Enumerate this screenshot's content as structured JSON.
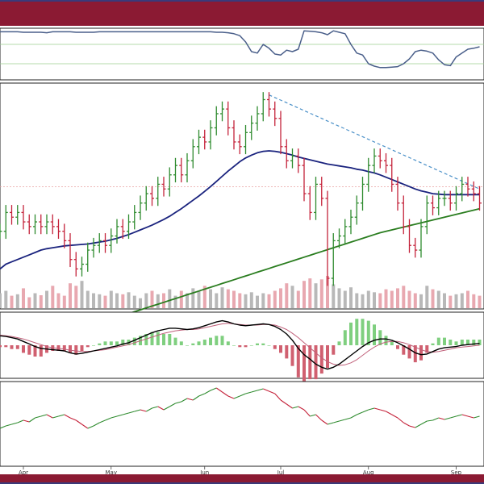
{
  "colors": {
    "banner": "#8b1a33",
    "up": "#2e8b2e",
    "down": "#c4223a",
    "ma_short": "#1a237e",
    "ma_long": "#2a7d1f",
    "trendline": "#4a90c8",
    "ref_line": "#e8a0a0",
    "rsi": "#4a5f8a",
    "macd": "#000000",
    "signal": "#c0607a",
    "hist_up": "#7fcf7f",
    "hist_down": "#d06070",
    "vol_up": "#b8b8b8",
    "vol_down": "#e8a8b0",
    "rel_line": "#2e8b2e"
  },
  "chart_data": [
    {
      "panel": "rsi",
      "type": "line",
      "ylim": [
        0,
        100
      ],
      "reference_levels": [
        30,
        70
      ],
      "values": [
        96,
        96,
        96,
        96,
        95,
        95,
        95,
        95,
        94,
        96,
        96,
        96,
        96,
        95,
        95,
        95,
        95,
        96,
        96,
        96,
        96,
        96,
        96,
        96,
        96,
        96,
        96,
        96,
        96,
        96,
        96,
        96,
        96,
        96,
        96,
        96,
        96,
        95,
        95,
        94,
        92,
        88,
        75,
        55,
        52,
        70,
        62,
        50,
        48,
        58,
        55,
        60,
        98,
        97,
        96,
        94,
        90,
        98,
        95,
        92,
        70,
        52,
        48,
        30,
        25,
        22,
        22,
        23,
        24,
        30,
        40,
        55,
        58,
        56,
        52,
        38,
        28,
        26,
        44,
        52,
        60,
        62,
        65
      ]
    },
    {
      "panel": "price",
      "type": "ohlc",
      "ylim": [
        38,
        85
      ],
      "x_ticks": [
        {
          "label": "Apr",
          "index": 4
        },
        {
          "label": "May",
          "index": 19
        },
        {
          "label": "Jun",
          "index": 35
        },
        {
          "label": "Jul",
          "index": 48
        },
        {
          "label": "Aug",
          "index": 63
        },
        {
          "label": "Sep",
          "index": 78
        }
      ],
      "closes": [
        54,
        58,
        57,
        58,
        56,
        55,
        56,
        55,
        56,
        55,
        54,
        52,
        48,
        46,
        47,
        50,
        51,
        52,
        51,
        53,
        55,
        54,
        56,
        58,
        60,
        62,
        61,
        64,
        63,
        66,
        68,
        66,
        69,
        72,
        74,
        73,
        76,
        79,
        80,
        76,
        73,
        72,
        75,
        77,
        79,
        82,
        80,
        78,
        72,
        69,
        70,
        68,
        62,
        58,
        64,
        61,
        44,
        52,
        53,
        55,
        57,
        60,
        64,
        68,
        70,
        69,
        68,
        64,
        60,
        55,
        51,
        50,
        55,
        60,
        59,
        61,
        61,
        60,
        62,
        64,
        63,
        62,
        60
      ],
      "ma_short": [
        46,
        47,
        47.5,
        48,
        48.5,
        49,
        49.5,
        50,
        50.3,
        50.5,
        50.7,
        50.9,
        51,
        51.1,
        51.2,
        51.3,
        51.5,
        51.7,
        51.9,
        52.2,
        52.5,
        52.9,
        53.3,
        53.8,
        54.3,
        54.8,
        55.3,
        55.9,
        56.5,
        57.2,
        58,
        58.8,
        59.7,
        60.6,
        61.5,
        62.5,
        63.5,
        64.6,
        65.7,
        66.8,
        67.8,
        68.8,
        69.6,
        70.2,
        70.7,
        71,
        71.1,
        71,
        70.8,
        70.5,
        70.2,
        69.8,
        69.5,
        69.2,
        68.9,
        68.6,
        68.3,
        68.1,
        67.9,
        67.7,
        67.5,
        67.2,
        67,
        66.7,
        66.4,
        66,
        65.5,
        65,
        64.5,
        64,
        63.5,
        63,
        62.6,
        62.3,
        62,
        61.9,
        61.8,
        61.8,
        61.8,
        61.8,
        61.8,
        61.8,
        61.8
      ],
      "ma_long": [
        30,
        30.2,
        30.5,
        30.7,
        31,
        31.3,
        31.6,
        31.9,
        32.2,
        32.5,
        32.8,
        33.1,
        33.4,
        33.7,
        34,
        34.3,
        34.6,
        34.9,
        35.2,
        35.5,
        35.8,
        36.1,
        36.5,
        36.9,
        37.3,
        37.7,
        38.1,
        38.5,
        38.9,
        39.3,
        39.7,
        40.1,
        40.5,
        40.9,
        41.3,
        41.7,
        42.1,
        42.5,
        42.9,
        43.3,
        43.7,
        44.1,
        44.5,
        44.9,
        45.3,
        45.7,
        46.1,
        46.5,
        46.9,
        47.3,
        47.7,
        48.1,
        48.5,
        48.9,
        49.3,
        49.7,
        50.1,
        50.5,
        50.9,
        51.3,
        51.7,
        52.1,
        52.5,
        52.9,
        53.3,
        53.7,
        54,
        54.3,
        54.6,
        54.9,
        55.2,
        55.5,
        55.8,
        56.1,
        56.4,
        56.7,
        57,
        57.3,
        57.6,
        57.9,
        58.2,
        58.5,
        58.8
      ],
      "volume": [
        30,
        35,
        25,
        28,
        40,
        22,
        30,
        26,
        35,
        45,
        30,
        25,
        50,
        45,
        55,
        35,
        30,
        28,
        25,
        35,
        30,
        28,
        32,
        25,
        20,
        30,
        35,
        28,
        30,
        38,
        25,
        35,
        30,
        40,
        35,
        45,
        38,
        30,
        42,
        38,
        35,
        30,
        28,
        32,
        25,
        30,
        28,
        35,
        40,
        50,
        45,
        35,
        55,
        60,
        50,
        58,
        65,
        48,
        40,
        35,
        42,
        30,
        28,
        35,
        32,
        30,
        38,
        35,
        40,
        45,
        35,
        30,
        28,
        45,
        38,
        35,
        30,
        25,
        28,
        30,
        35,
        28,
        25
      ],
      "ref_level": 63.5,
      "trendline": [
        {
          "index": 46,
          "value": 83
        },
        {
          "index": 82,
          "value": 63
        }
      ]
    },
    {
      "panel": "macd",
      "type": "line",
      "ylim": [
        -5,
        5
      ],
      "macd": [
        1.5,
        1.4,
        1.2,
        1.0,
        0.6,
        0.2,
        -0.2,
        -0.5,
        -0.6,
        -0.7,
        -0.8,
        -0.9,
        -1.2,
        -1.4,
        -1.3,
        -1.1,
        -0.9,
        -0.7,
        -0.5,
        -0.3,
        -0.1,
        0.2,
        0.4,
        0.8,
        1.2,
        1.6,
        2.0,
        2.3,
        2.5,
        2.7,
        2.7,
        2.6,
        2.5,
        2.6,
        2.8,
        3.1,
        3.4,
        3.7,
        3.9,
        3.7,
        3.4,
        3.2,
        3.1,
        3.2,
        3.3,
        3.4,
        3.3,
        3.0,
        2.5,
        1.8,
        0.8,
        -0.5,
        -1.5,
        -2.2,
        -3.0,
        -3.5,
        -3.8,
        -3.5,
        -3.0,
        -2.3,
        -1.6,
        -0.9,
        -0.2,
        0.4,
        0.8,
        1.0,
        1.0,
        0.8,
        0.4,
        -0.1,
        -0.6,
        -1.2,
        -1.5,
        -1.4,
        -1.0,
        -0.6,
        -0.4,
        -0.3,
        -0.2,
        0.0,
        0.1,
        0.2,
        0.3
      ],
      "signal": [
        1.6,
        1.5,
        1.4,
        1.2,
        1.0,
        0.7,
        0.4,
        0.1,
        -0.2,
        -0.4,
        -0.5,
        -0.6,
        -0.8,
        -0.9,
        -1.0,
        -1.0,
        -0.9,
        -0.8,
        -0.7,
        -0.5,
        -0.3,
        -0.1,
        0.1,
        0.4,
        0.7,
        1.0,
        1.3,
        1.6,
        1.9,
        2.1,
        2.3,
        2.4,
        2.5,
        2.5,
        2.6,
        2.8,
        3.0,
        3.2,
        3.4,
        3.5,
        3.4,
        3.3,
        3.2,
        3.2,
        3.2,
        3.3,
        3.3,
        3.2,
        2.9,
        2.5,
        1.9,
        1.2,
        0.4,
        -0.4,
        -1.2,
        -2.0,
        -2.6,
        -3.0,
        -3.2,
        -3.1,
        -2.8,
        -2.3,
        -1.6,
        -0.9,
        -0.3,
        0.2,
        0.5,
        0.6,
        0.6,
        0.4,
        0.1,
        -0.3,
        -0.7,
        -1.0,
        -1.1,
        -1.0,
        -0.8,
        -0.6,
        -0.4,
        -0.3,
        -0.2,
        -0.1,
        0.0
      ]
    },
    {
      "panel": "relative",
      "type": "line",
      "ylim": [
        0,
        100
      ],
      "values": [
        45,
        48,
        50,
        52,
        55,
        53,
        58,
        60,
        62,
        58,
        60,
        62,
        58,
        55,
        50,
        45,
        48,
        52,
        55,
        58,
        60,
        62,
        64,
        66,
        68,
        66,
        70,
        72,
        68,
        72,
        76,
        78,
        82,
        80,
        85,
        88,
        92,
        95,
        90,
        85,
        82,
        85,
        88,
        90,
        92,
        94,
        91,
        88,
        80,
        75,
        70,
        72,
        68,
        60,
        62,
        55,
        50,
        52,
        54,
        56,
        58,
        62,
        65,
        68,
        70,
        68,
        66,
        62,
        58,
        52,
        48,
        46,
        50,
        54,
        55,
        58,
        56,
        58,
        60,
        62,
        60,
        58,
        60
      ]
    }
  ]
}
